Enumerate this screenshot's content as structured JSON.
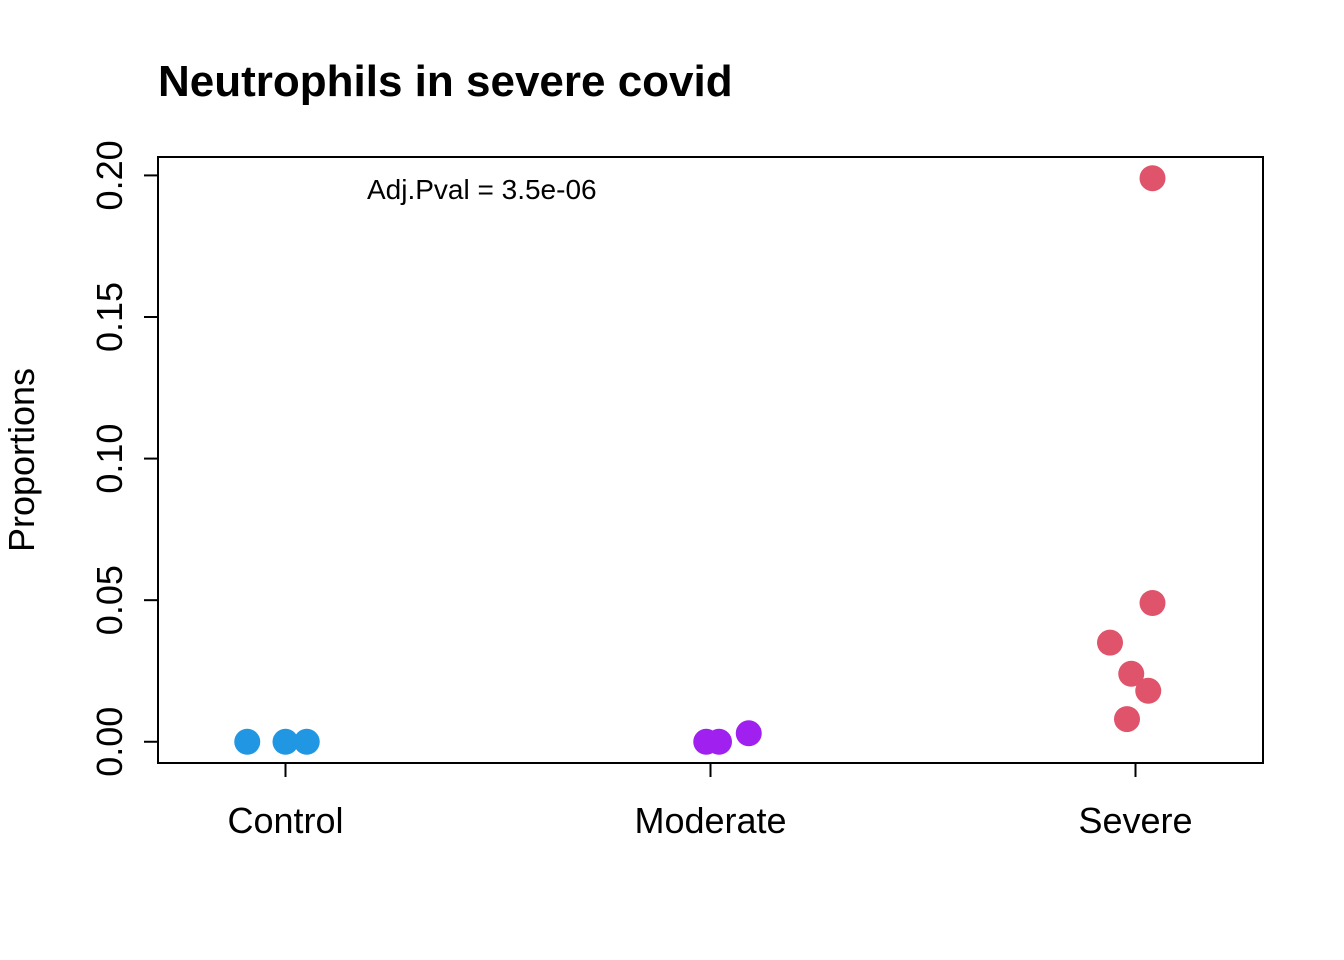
{
  "chart_data": {
    "type": "scatter",
    "title": "Neutrophils in severe covid",
    "xlabel": "",
    "ylabel": "Proportions",
    "categories": [
      "Control",
      "Moderate",
      "Severe"
    ],
    "yticks": [
      "0.00",
      "0.05",
      "0.10",
      "0.15",
      "0.20"
    ],
    "ylim": [
      -0.0075,
      0.2065
    ],
    "annotation": "Adj.Pval = 3.5e-06",
    "grid": false,
    "legend": "none",
    "series": [
      {
        "category": "Control",
        "color": "#2196e3",
        "points": [
          {
            "jitter": -0.09,
            "y": 0.0
          },
          {
            "jitter": 0.0,
            "y": 0.0
          },
          {
            "jitter": 0.05,
            "y": 0.0
          }
        ]
      },
      {
        "category": "Moderate",
        "color": "#a020f0",
        "points": [
          {
            "jitter": -0.01,
            "y": 0.0
          },
          {
            "jitter": 0.02,
            "y": 0.0
          },
          {
            "jitter": 0.09,
            "y": 0.003
          }
        ]
      },
      {
        "category": "Severe",
        "color": "#df536b",
        "points": [
          {
            "jitter": 0.04,
            "y": 0.199
          },
          {
            "jitter": 0.04,
            "y": 0.049
          },
          {
            "jitter": -0.06,
            "y": 0.035
          },
          {
            "jitter": -0.01,
            "y": 0.024
          },
          {
            "jitter": 0.03,
            "y": 0.018
          },
          {
            "jitter": -0.02,
            "y": 0.008
          }
        ]
      }
    ]
  }
}
